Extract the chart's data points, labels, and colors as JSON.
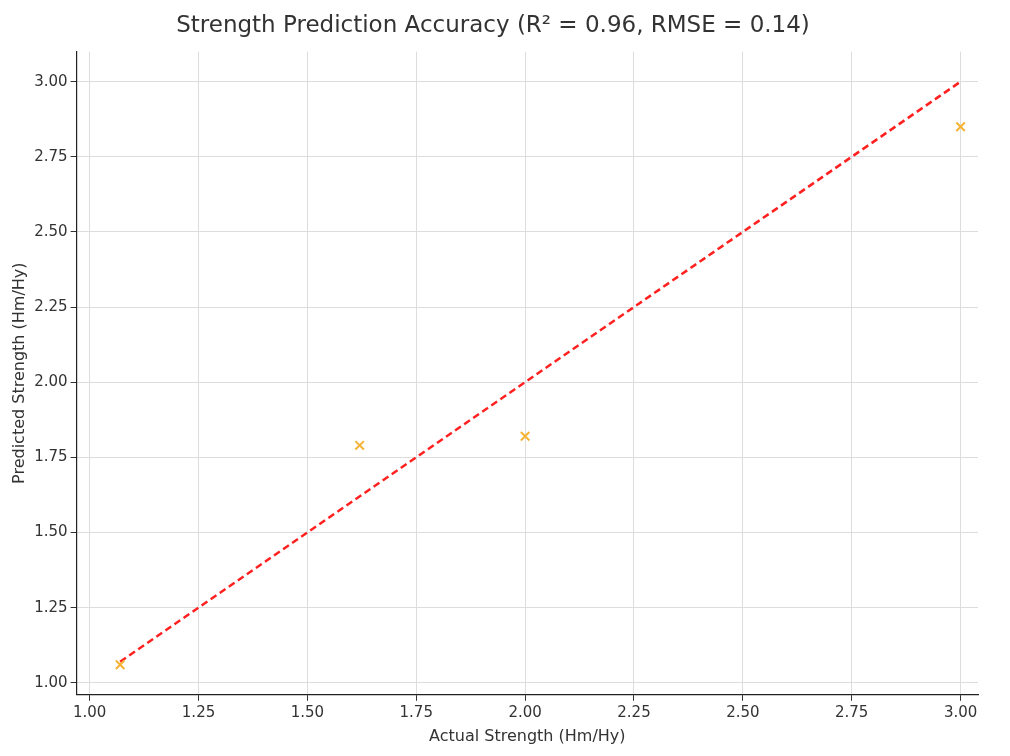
{
  "chart_data": {
    "type": "scatter",
    "title": "Strength Prediction Accuracy (R² = 0.96, RMSE = 0.14)",
    "xlabel": "Actual Strength (Hm/Hy)",
    "ylabel": "Predicted Strength (Hm/Hy)",
    "series": [
      {
        "color": "#f5b335",
        "marker": "cross",
        "x": [
          1.07,
          1.62,
          2.0,
          3.0
        ],
        "values": [
          1.06,
          1.79,
          1.82,
          2.85
        ]
      },
      {
        "type": "line",
        "color": "#ff2020",
        "line_style": "dashed",
        "marker": "none",
        "x": [
          1.07,
          3.0
        ],
        "values": [
          1.07,
          3.0
        ]
      }
    ],
    "xlim": [
      0.97,
      3.04
    ],
    "xticks": [
      {
        "value": 1,
        "label": "1.00"
      },
      {
        "value": 1.25,
        "label": "1.25"
      },
      {
        "value": 1.5,
        "label": "1.50"
      },
      {
        "value": 1.75,
        "label": "1.75"
      },
      {
        "value": 2,
        "label": "2.00"
      },
      {
        "value": 2.25,
        "label": "2.25"
      },
      {
        "value": 2.5,
        "label": "2.50"
      },
      {
        "value": 2.75,
        "label": "2.75"
      },
      {
        "value": 3,
        "label": "3.00"
      }
    ],
    "ylim": [
      0.96,
      3.1
    ],
    "yticks": [
      {
        "value": 1,
        "label": "1.00"
      },
      {
        "value": 1.25,
        "label": "1.25"
      },
      {
        "value": 1.5,
        "label": "1.50"
      },
      {
        "value": 1.75,
        "label": "1.75"
      },
      {
        "value": 2,
        "label": "2.00"
      },
      {
        "value": 2.25,
        "label": "2.25"
      },
      {
        "value": 2.5,
        "label": "2.50"
      },
      {
        "value": 2.75,
        "label": "2.75"
      },
      {
        "value": 3,
        "label": "3.00"
      }
    ],
    "grid": true,
    "legend": false
  }
}
